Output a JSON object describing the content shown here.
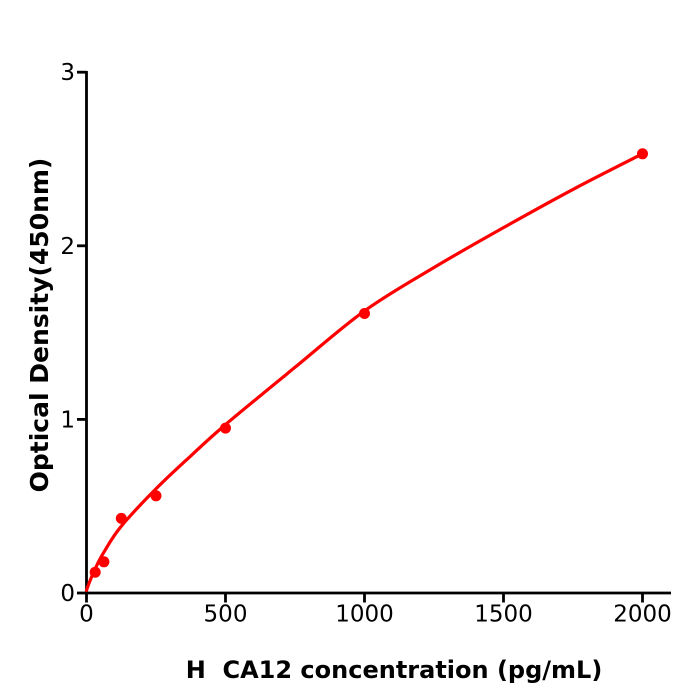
{
  "chart_data": {
    "type": "scatter",
    "title": "",
    "xlabel": "H  CA12 concentration (pg/mL)",
    "ylabel": "Optical Density(450nm)",
    "xlim": [
      0,
      2100
    ],
    "ylim": [
      0,
      3
    ],
    "x_ticks": [
      0,
      500,
      1000,
      1500,
      2000
    ],
    "y_ticks": [
      0,
      1,
      2,
      3
    ],
    "grid": false,
    "legend": null,
    "marker_color": "#fe0000",
    "line_color": "#fe0000",
    "axis_color": "#000000",
    "background_color": "#ffffff",
    "points": {
      "x": [
        31.25,
        62.5,
        125,
        250,
        500,
        1000,
        2000
      ],
      "y": [
        0.12,
        0.18,
        0.43,
        0.56,
        0.95,
        1.61,
        2.53
      ]
    },
    "fit_curve": {
      "x": [
        0,
        10,
        31.25,
        62.5,
        125,
        250,
        375,
        500,
        750,
        1000,
        1250,
        1500,
        1750,
        2000
      ],
      "y": [
        0.015,
        0.06,
        0.14,
        0.235,
        0.385,
        0.6,
        0.79,
        0.97,
        1.3,
        1.625,
        1.875,
        2.105,
        2.325,
        2.53
      ]
    }
  }
}
